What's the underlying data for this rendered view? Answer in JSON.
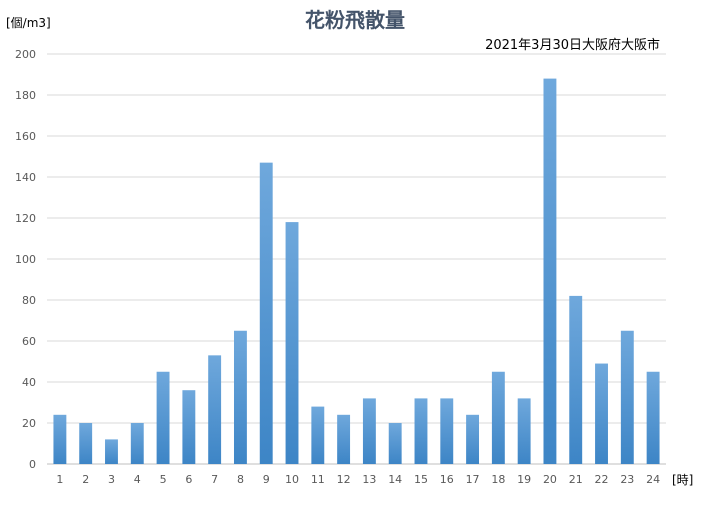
{
  "chart_data": {
    "type": "bar",
    "title": "花粉飛散量",
    "subtitle": "2021年3月30日大阪府大阪市",
    "ylabel": "[個/m3]",
    "xlabel": "[時]",
    "ylim": [
      0,
      200
    ],
    "yticks": [
      0,
      20,
      40,
      60,
      80,
      100,
      120,
      140,
      160,
      180,
      200
    ],
    "grid": true,
    "legend": "none",
    "categories": [
      "1",
      "2",
      "3",
      "4",
      "5",
      "6",
      "7",
      "8",
      "9",
      "10",
      "11",
      "12",
      "13",
      "14",
      "15",
      "16",
      "17",
      "18",
      "19",
      "20",
      "21",
      "22",
      "23",
      "24"
    ],
    "values": [
      24,
      20,
      12,
      20,
      45,
      36,
      53,
      65,
      147,
      118,
      28,
      24,
      32,
      20,
      32,
      32,
      24,
      45,
      32,
      188,
      82,
      49,
      65,
      45
    ],
    "colors": {
      "bar_top": "#6fa8dc",
      "bar_bottom": "#3d85c6",
      "grid": "#d9d9d9",
      "axis": "#bfbfbf",
      "tick_text": "#595959",
      "title": "#44546a"
    }
  }
}
